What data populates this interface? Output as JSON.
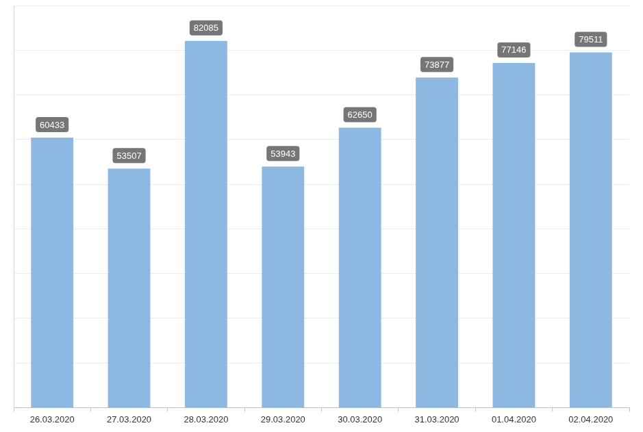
{
  "chart_data": {
    "type": "bar",
    "categories": [
      "26.03.2020",
      "27.03.2020",
      "28.03.2020",
      "29.03.2020",
      "30.03.2020",
      "31.03.2020",
      "01.04.2020",
      "02.04.2020"
    ],
    "values": [
      60433,
      53507,
      82085,
      53943,
      62650,
      73877,
      77146,
      79511
    ],
    "color": "#8db8e2",
    "ylim": [
      0,
      90000
    ],
    "yticks": [
      0,
      10000,
      20000,
      30000,
      40000,
      50000,
      60000,
      70000,
      80000,
      90000
    ],
    "grid": true,
    "data_labels": true,
    "tick_labels": "x"
  }
}
